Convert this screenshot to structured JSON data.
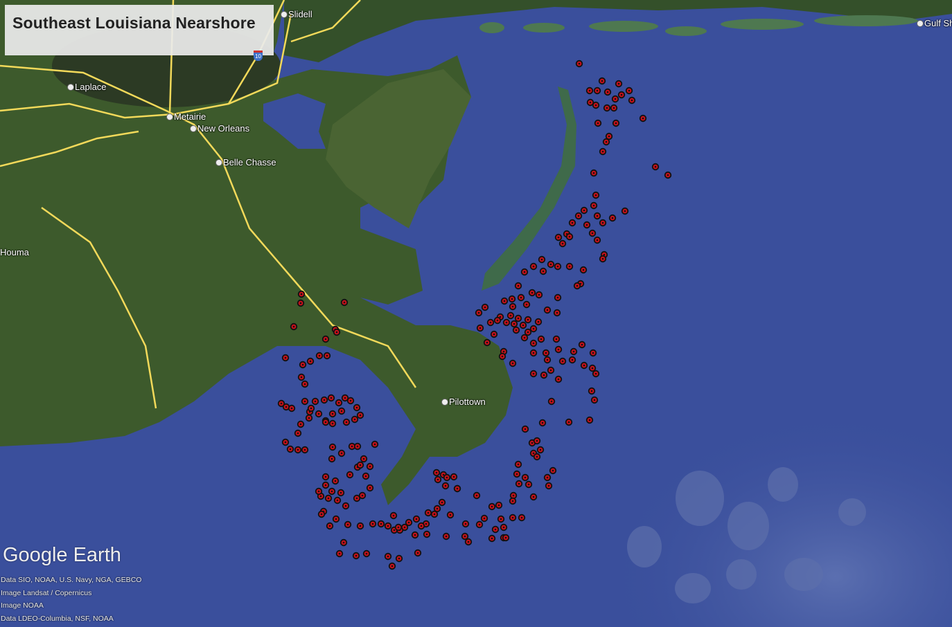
{
  "title": "Southeast Louisiana Nearshore",
  "places": [
    {
      "name": "Slidell"
    },
    {
      "name": "Laplace"
    },
    {
      "name": "Metairie"
    },
    {
      "name": "New Orleans"
    },
    {
      "name": "Belle Chasse"
    },
    {
      "name": "Houma"
    },
    {
      "name": "Pilottown"
    },
    {
      "name": "Gulf Sh"
    }
  ],
  "highway_shield": "10",
  "logo": "Google Earth",
  "attribution": [
    "Data SIO, NOAA, U.S. Navy, NGA, GEBCO",
    "Image Landsat / Copernicus",
    "Image NOAA",
    "Data LDEO-Columbia, NSF, NOAA"
  ],
  "colors": {
    "water": "#3a4f9c",
    "land": "#3d5a2c",
    "roads": "#f2d95a",
    "marker_fill": "#c8101a",
    "marker_ring": "#111111"
  },
  "marker_icon": "red-circle-placemark-icon"
}
